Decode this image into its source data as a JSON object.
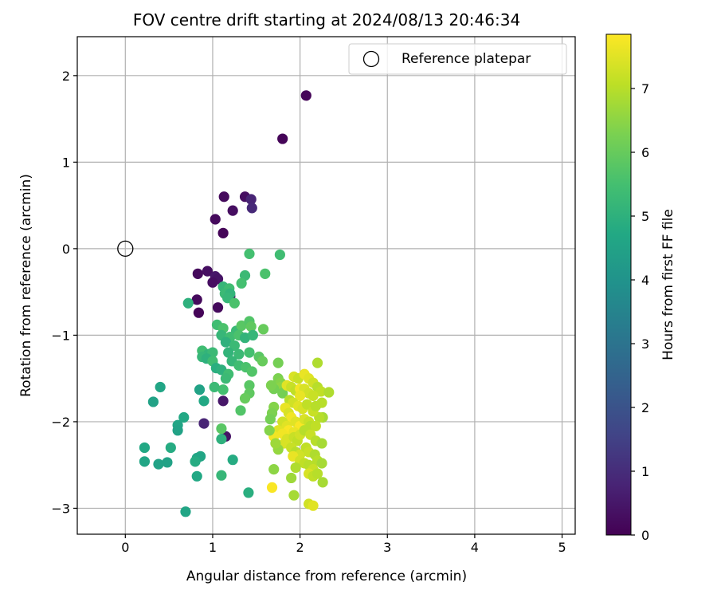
{
  "chart_data": {
    "type": "scatter",
    "title": "FOV centre drift starting at 2024/08/13 20:46:34",
    "xlabel": "Angular distance from reference (arcmin)",
    "ylabel": "Rotation from reference (arcmin)",
    "xlim": [
      -0.55,
      5.15
    ],
    "ylim": [
      -3.3,
      2.45
    ],
    "xticks": [
      0,
      1,
      2,
      3,
      4,
      5
    ],
    "yticks": [
      -3,
      -2,
      -1,
      0,
      1,
      2
    ],
    "xtick_labels": [
      "0",
      "1",
      "2",
      "3",
      "4",
      "5"
    ],
    "ytick_labels": [
      "−3",
      "−2",
      "−1",
      "0",
      "1",
      "2"
    ],
    "grid": true,
    "legend": {
      "placement": "top-right",
      "entries": [
        "Reference platepar"
      ]
    },
    "reference_point": {
      "x": 0,
      "y": 0,
      "label": "Reference platepar"
    },
    "colorbar": {
      "label": "Hours from first FF file",
      "min": 0,
      "max": 7.85,
      "ticks": [
        0,
        1,
        2,
        3,
        4,
        5,
        6,
        7
      ],
      "tick_labels": [
        "0",
        "1",
        "2",
        "3",
        "4",
        "5",
        "6",
        "7"
      ],
      "colormap": "viridis"
    },
    "points": [
      [
        2.07,
        1.77,
        0.1
      ],
      [
        1.8,
        1.27,
        0.1
      ],
      [
        1.13,
        0.6,
        0.2
      ],
      [
        1.37,
        0.6,
        0.3
      ],
      [
        1.44,
        0.57,
        0.8
      ],
      [
        1.45,
        0.47,
        0.9
      ],
      [
        1.23,
        0.44,
        0.3
      ],
      [
        1.03,
        0.34,
        0.2
      ],
      [
        1.12,
        0.18,
        0.1
      ],
      [
        0.83,
        -0.29,
        0.2
      ],
      [
        0.94,
        -0.26,
        0.3
      ],
      [
        1.03,
        -0.32,
        0.5
      ],
      [
        1.06,
        -0.35,
        0.4
      ],
      [
        1.0,
        -0.39,
        0.3
      ],
      [
        0.82,
        -0.59,
        0.2
      ],
      [
        1.06,
        -0.68,
        0.2
      ],
      [
        0.84,
        -0.74,
        0.1
      ],
      [
        1.2,
        -0.55,
        0.4
      ],
      [
        1.42,
        -0.06,
        5.5
      ],
      [
        1.77,
        -0.07,
        5.4
      ],
      [
        1.6,
        -0.29,
        5.6
      ],
      [
        1.37,
        -0.31,
        5.3
      ],
      [
        1.33,
        -0.4,
        5.5
      ],
      [
        1.12,
        -0.44,
        5.2
      ],
      [
        1.19,
        -0.46,
        5.4
      ],
      [
        1.14,
        -0.52,
        5.3
      ],
      [
        1.2,
        -0.52,
        5.1
      ],
      [
        1.17,
        -0.57,
        5.2
      ],
      [
        1.25,
        -0.63,
        5.6
      ],
      [
        0.72,
        -0.63,
        5.0
      ],
      [
        1.05,
        -0.88,
        5.4
      ],
      [
        1.12,
        -0.92,
        5.6
      ],
      [
        1.27,
        -0.95,
        5.3
      ],
      [
        1.33,
        -0.89,
        5.8
      ],
      [
        1.42,
        -0.84,
        5.7
      ],
      [
        1.44,
        -0.9,
        5.9
      ],
      [
        1.58,
        -0.93,
        6.0
      ],
      [
        1.1,
        -1.0,
        5.2
      ],
      [
        1.2,
        -1.02,
        5.4
      ],
      [
        1.3,
        -1.0,
        5.6
      ],
      [
        1.37,
        -1.03,
        5.1
      ],
      [
        1.46,
        -1.0,
        5.2
      ],
      [
        1.15,
        -1.08,
        5.0
      ],
      [
        1.25,
        -1.12,
        5.3
      ],
      [
        1.18,
        -1.2,
        5.1
      ],
      [
        1.3,
        -1.22,
        5.3
      ],
      [
        1.42,
        -1.2,
        5.5
      ],
      [
        1.53,
        -1.25,
        5.8
      ],
      [
        1.57,
        -1.3,
        6.0
      ],
      [
        0.88,
        -1.18,
        5.4
      ],
      [
        0.95,
        -1.22,
        5.1
      ],
      [
        1.0,
        -1.2,
        5.3
      ],
      [
        0.88,
        -1.25,
        5.2
      ],
      [
        0.93,
        -1.27,
        5.0
      ],
      [
        1.0,
        -1.3,
        5.4
      ],
      [
        1.04,
        -1.38,
        4.9
      ],
      [
        1.1,
        -1.4,
        5.0
      ],
      [
        1.22,
        -1.3,
        5.2
      ],
      [
        1.3,
        -1.35,
        5.4
      ],
      [
        1.38,
        -1.37,
        5.6
      ],
      [
        1.45,
        -1.42,
        5.7
      ],
      [
        1.18,
        -1.45,
        5.4
      ],
      [
        1.15,
        -1.5,
        5.3
      ],
      [
        1.12,
        -1.63,
        5.5
      ],
      [
        1.02,
        -1.6,
        5.3
      ],
      [
        1.42,
        -1.58,
        5.8
      ],
      [
        1.42,
        -1.67,
        5.9
      ],
      [
        1.37,
        -1.73,
        6.0
      ],
      [
        1.32,
        -1.87,
        5.7
      ],
      [
        1.75,
        -1.32,
        6.2
      ],
      [
        1.75,
        -1.5,
        6.3
      ],
      [
        1.78,
        -1.55,
        6.4
      ],
      [
        1.78,
        -1.6,
        6.5
      ],
      [
        1.7,
        -1.62,
        6.2
      ],
      [
        1.8,
        -1.67,
        6.2
      ],
      [
        1.7,
        -1.83,
        6.4
      ],
      [
        1.68,
        -1.9,
        6.3
      ],
      [
        1.66,
        -1.97,
        6.2
      ],
      [
        0.4,
        -1.6,
        4.6
      ],
      [
        0.32,
        -1.77,
        4.5
      ],
      [
        0.67,
        -1.95,
        4.7
      ],
      [
        0.6,
        -2.04,
        4.6
      ],
      [
        0.6,
        -2.1,
        4.5
      ],
      [
        0.52,
        -2.3,
        4.8
      ],
      [
        0.22,
        -2.3,
        4.7
      ],
      [
        0.22,
        -2.46,
        4.6
      ],
      [
        0.38,
        -2.49,
        4.5
      ],
      [
        0.48,
        -2.47,
        4.5
      ],
      [
        0.82,
        -2.42,
        4.6
      ],
      [
        0.86,
        -2.4,
        4.6
      ],
      [
        0.8,
        -2.46,
        4.8
      ],
      [
        0.82,
        -2.63,
        4.7
      ],
      [
        0.69,
        -3.04,
        4.6
      ],
      [
        0.9,
        -1.76,
        4.7
      ],
      [
        0.85,
        -1.63,
        4.5
      ],
      [
        0.9,
        -2.02,
        0.8
      ],
      [
        1.12,
        -1.76,
        0.5
      ],
      [
        1.15,
        -2.17,
        0.4
      ],
      [
        1.1,
        -2.08,
        5.8
      ],
      [
        1.1,
        -2.2,
        5.0
      ],
      [
        1.23,
        -2.44,
        4.8
      ],
      [
        1.1,
        -2.62,
        5.2
      ],
      [
        1.41,
        -2.82,
        4.9
      ],
      [
        1.93,
        -1.48,
        7.4
      ],
      [
        1.98,
        -1.5,
        7.2
      ],
      [
        2.05,
        -1.45,
        7.6
      ],
      [
        2.1,
        -1.5,
        7.5
      ],
      [
        2.15,
        -1.55,
        7.3
      ],
      [
        2.2,
        -1.6,
        7.0
      ],
      [
        2.2,
        -1.32,
        6.9
      ],
      [
        2.24,
        -1.65,
        7.1
      ],
      [
        2.33,
        -1.66,
        6.9
      ],
      [
        2.25,
        -1.78,
        7.0
      ],
      [
        2.26,
        -1.95,
        6.8
      ],
      [
        2.22,
        -1.95,
        7.0
      ],
      [
        1.85,
        -1.58,
        7.5
      ],
      [
        1.9,
        -1.6,
        7.2
      ],
      [
        1.95,
        -1.64,
        7.1
      ],
      [
        2.0,
        -1.62,
        7.7
      ],
      [
        2.05,
        -1.62,
        7.4
      ],
      [
        2.1,
        -1.67,
        7.3
      ],
      [
        2.15,
        -1.7,
        7.2
      ],
      [
        2.0,
        -1.7,
        7.6
      ],
      [
        1.88,
        -1.75,
        7.0
      ],
      [
        1.92,
        -1.78,
        7.3
      ],
      [
        1.98,
        -1.82,
        7.5
      ],
      [
        2.03,
        -1.85,
        7.4
      ],
      [
        2.08,
        -1.8,
        7.1
      ],
      [
        2.15,
        -1.88,
        7.2
      ],
      [
        2.18,
        -1.82,
        7.0
      ],
      [
        1.83,
        -1.84,
        7.6
      ],
      [
        1.87,
        -1.9,
        7.4
      ],
      [
        1.9,
        -1.95,
        7.7
      ],
      [
        1.95,
        -2.0,
        7.5
      ],
      [
        2.0,
        -2.05,
        7.8
      ],
      [
        2.05,
        -1.97,
        7.4
      ],
      [
        2.1,
        -2.0,
        7.2
      ],
      [
        2.12,
        -2.05,
        7.0
      ],
      [
        2.18,
        -2.05,
        7.1
      ],
      [
        1.8,
        -2.0,
        7.3
      ],
      [
        1.85,
        -2.05,
        7.5
      ],
      [
        1.87,
        -2.1,
        7.8
      ],
      [
        1.93,
        -2.12,
        7.6
      ],
      [
        1.75,
        -2.1,
        7.5
      ],
      [
        1.8,
        -2.14,
        7.7
      ],
      [
        1.85,
        -2.2,
        7.4
      ],
      [
        1.93,
        -2.18,
        7.2
      ],
      [
        1.97,
        -2.22,
        7.1
      ],
      [
        2.0,
        -2.15,
        7.3
      ],
      [
        2.05,
        -2.1,
        7.0
      ],
      [
        2.12,
        -2.15,
        7.2
      ],
      [
        2.18,
        -2.22,
        7.0
      ],
      [
        2.25,
        -2.25,
        6.8
      ],
      [
        1.7,
        -2.17,
        7.7
      ],
      [
        1.82,
        -2.25,
        7.4
      ],
      [
        1.9,
        -2.3,
        7.2
      ],
      [
        1.95,
        -2.35,
        7.0
      ],
      [
        2.0,
        -2.38,
        7.3
      ],
      [
        2.07,
        -2.3,
        7.1
      ],
      [
        2.1,
        -2.35,
        7.2
      ],
      [
        2.17,
        -2.38,
        6.9
      ],
      [
        2.2,
        -2.45,
        7.0
      ],
      [
        1.92,
        -2.4,
        7.6
      ],
      [
        2.0,
        -2.45,
        7.3
      ],
      [
        2.05,
        -2.48,
        7.1
      ],
      [
        1.95,
        -2.53,
        6.9
      ],
      [
        2.1,
        -2.5,
        7.0
      ],
      [
        2.15,
        -2.55,
        7.2
      ],
      [
        2.25,
        -2.48,
        6.8
      ],
      [
        1.9,
        -2.65,
        6.7
      ],
      [
        2.1,
        -2.6,
        7.4
      ],
      [
        2.15,
        -2.63,
        7.1
      ],
      [
        2.2,
        -2.6,
        7.0
      ],
      [
        2.26,
        -2.7,
        6.8
      ],
      [
        2.1,
        -2.95,
        7.3
      ],
      [
        2.15,
        -2.97,
        7.5
      ],
      [
        1.93,
        -2.85,
        6.8
      ],
      [
        1.68,
        -2.76,
        7.8
      ],
      [
        1.7,
        -2.55,
        6.5
      ],
      [
        1.75,
        -2.32,
        6.6
      ],
      [
        1.72,
        -2.25,
        6.7
      ],
      [
        1.65,
        -2.1,
        6.4
      ],
      [
        1.67,
        -1.58,
        6.3
      ]
    ]
  }
}
